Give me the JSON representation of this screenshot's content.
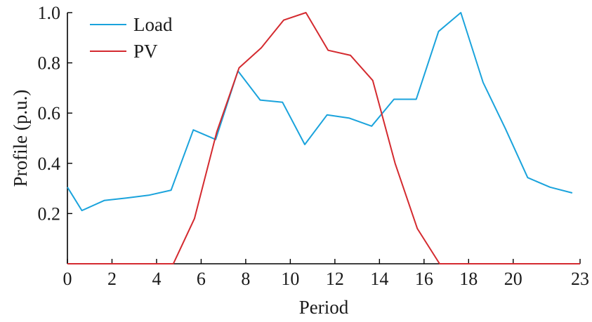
{
  "chart_data": {
    "type": "line",
    "xlabel": "Period",
    "ylabel": "Profile (p.u.)",
    "xlim": [
      0,
      23
    ],
    "ylim": [
      0,
      1.0
    ],
    "x_ticks": [
      0,
      2,
      4,
      6,
      8,
      10,
      12,
      14,
      16,
      18,
      20,
      23
    ],
    "x_tick_labels": [
      "0",
      "2",
      "4",
      "6",
      "8",
      "10",
      "12",
      "14",
      "16",
      "18",
      "20",
      "23"
    ],
    "y_ticks": [
      0.2,
      0.4,
      0.6,
      0.8,
      1.0
    ],
    "y_tick_labels": [
      "0.2",
      "0.4",
      "0.6",
      "0.8",
      "1.0"
    ],
    "legend_position": "top-left",
    "series": [
      {
        "name": "Load",
        "color": "#1aa3dc",
        "x": [
          0,
          0.65,
          1.65,
          2.65,
          3.65,
          4.65,
          5.65,
          6.65,
          7.65,
          8.65,
          9.65,
          10.65,
          11.65,
          12.65,
          13.65,
          14.65,
          15.65,
          16.65,
          17.65,
          18.65,
          19.65,
          20.65,
          21.65,
          22.65
        ],
        "y": [
          0.305,
          0.212,
          0.252,
          0.262,
          0.273,
          0.293,
          0.533,
          0.495,
          0.768,
          0.652,
          0.643,
          0.475,
          0.593,
          0.58,
          0.548,
          0.655,
          0.655,
          0.925,
          1.0,
          0.722,
          0.538,
          0.343,
          0.305,
          0.282
        ]
      },
      {
        "name": "PV",
        "color": "#d42a2f",
        "x": [
          0,
          1,
          2,
          3,
          4,
          4.75,
          5.7,
          6.7,
          7.7,
          8.7,
          9.7,
          10.7,
          11.7,
          12.7,
          13.7,
          14.7,
          15.7,
          16.7,
          17.7,
          18.7,
          19.7,
          20.7,
          21.7,
          22.7,
          23
        ],
        "y": [
          0,
          0,
          0,
          0,
          0,
          0,
          0.18,
          0.525,
          0.78,
          0.86,
          0.97,
          1.0,
          0.85,
          0.83,
          0.73,
          0.4,
          0.14,
          0,
          0,
          0,
          0,
          0,
          0,
          0,
          0
        ]
      }
    ]
  }
}
